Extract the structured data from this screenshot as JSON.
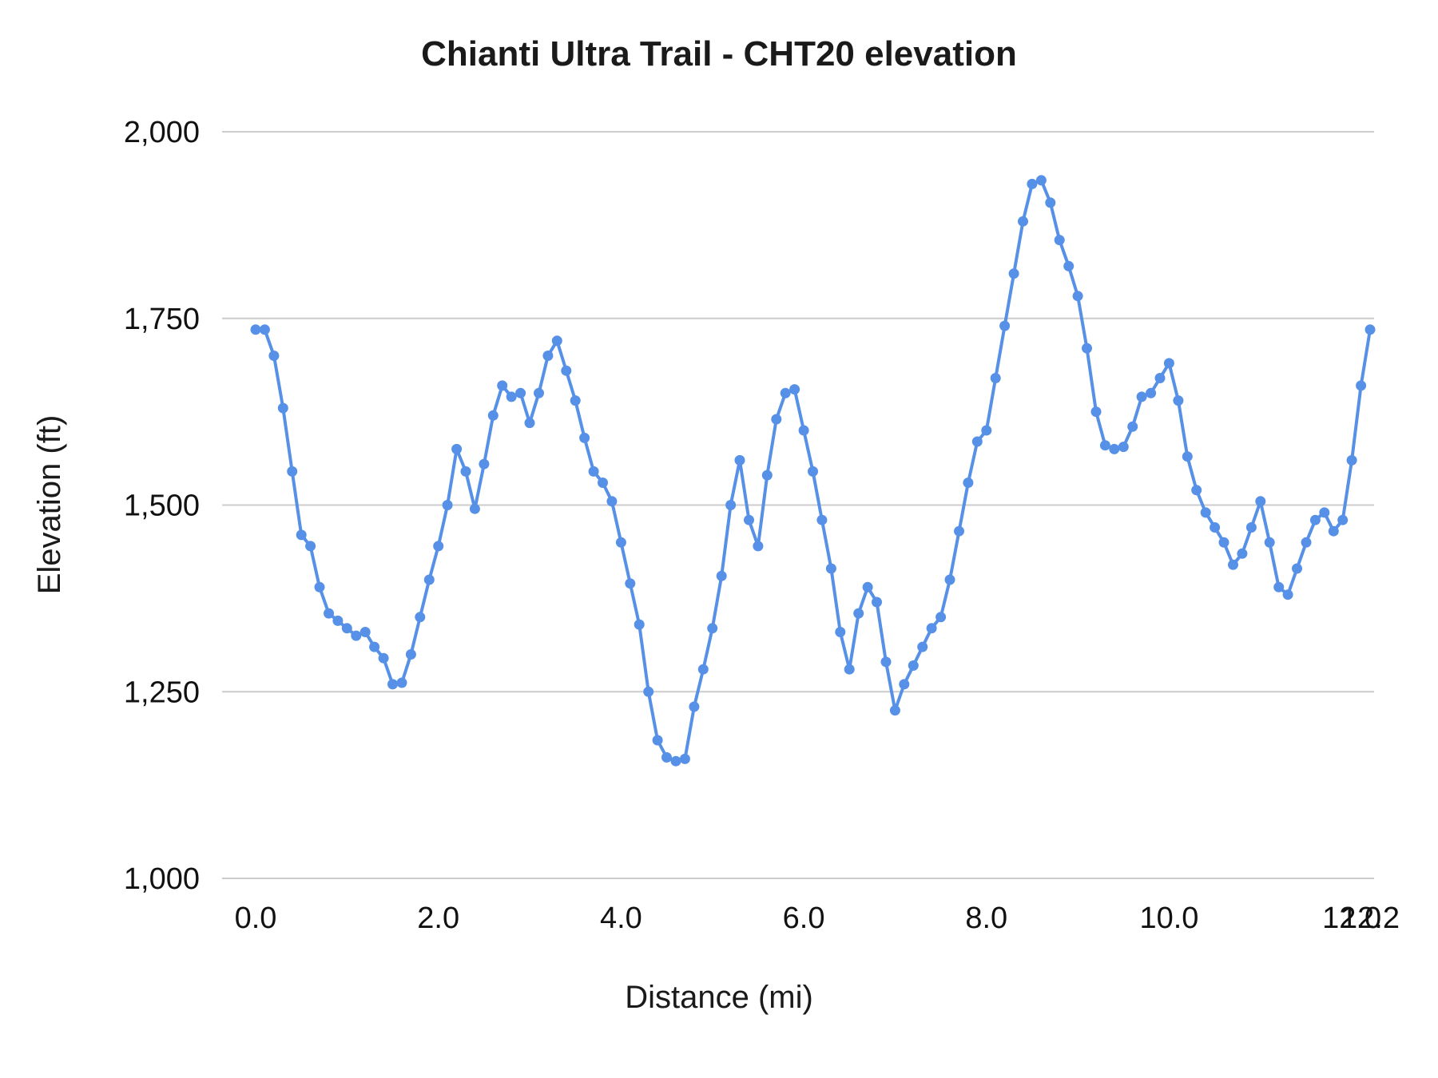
{
  "chart_data": {
    "type": "line",
    "title": "Chianti Ultra Trail - CHT20 elevation",
    "xlabel": "Distance (mi)",
    "ylabel": "Elevation (ft)",
    "xlim": [
      0,
      12.2
    ],
    "ylim": [
      1000,
      2000
    ],
    "grid": true,
    "legend": "none",
    "x_start": 0,
    "x_step": 0.1,
    "x_ticks": [
      0,
      2,
      4,
      6,
      8,
      10,
      12,
      12.2
    ],
    "x_tick_labels": [
      "0.0",
      "2.0",
      "4.0",
      "6.0",
      "8.0",
      "10.0",
      "12.0",
      "12.2"
    ],
    "y_ticks": [
      1000,
      1250,
      1500,
      1750,
      2000
    ],
    "y_tick_labels": [
      "1,000",
      "1,250",
      "1,500",
      "1,750",
      "2,000"
    ],
    "colors": {
      "line": "#5791E7",
      "grid": "#cccccc",
      "text": "#111111",
      "background": "#ffffff"
    },
    "series": [
      {
        "name": "elevation",
        "color": "#5791E7",
        "marker": "circle",
        "values": [
          1735,
          1735,
          1700,
          1630,
          1545,
          1460,
          1445,
          1390,
          1355,
          1345,
          1335,
          1325,
          1330,
          1310,
          1295,
          1260,
          1262,
          1300,
          1350,
          1400,
          1445,
          1500,
          1575,
          1545,
          1495,
          1555,
          1620,
          1660,
          1645,
          1650,
          1610,
          1650,
          1700,
          1720,
          1680,
          1640,
          1590,
          1545,
          1530,
          1505,
          1450,
          1395,
          1340,
          1250,
          1185,
          1162,
          1157,
          1160,
          1230,
          1280,
          1335,
          1405,
          1500,
          1560,
          1480,
          1445,
          1540,
          1615,
          1650,
          1655,
          1600,
          1545,
          1480,
          1415,
          1330,
          1280,
          1355,
          1390,
          1370,
          1290,
          1225,
          1260,
          1285,
          1310,
          1335,
          1350,
          1400,
          1465,
          1530,
          1585,
          1600,
          1670,
          1740,
          1810,
          1880,
          1930,
          1935,
          1905,
          1855,
          1820,
          1780,
          1710,
          1625,
          1580,
          1575,
          1578,
          1605,
          1645,
          1650,
          1670,
          1690,
          1640,
          1565,
          1520,
          1490,
          1470,
          1450,
          1420,
          1435,
          1470,
          1505,
          1450,
          1390,
          1380,
          1415,
          1450,
          1480,
          1490,
          1465,
          1480,
          1560,
          1660,
          1735
        ]
      }
    ]
  }
}
